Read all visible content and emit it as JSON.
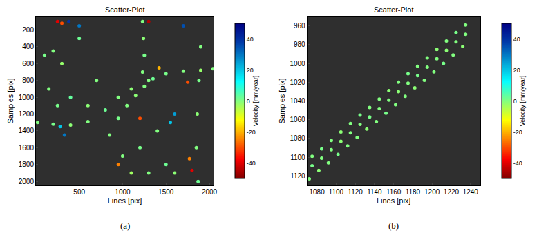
{
  "chart_data": [
    {
      "type": "scatter",
      "title": "Scatter-Plot",
      "caption": "(a)",
      "x_label": "Lines [pix]",
      "y_label": "Samples [pix]",
      "xlim": [
        1,
        2048
      ],
      "ylim": [
        2048,
        40
      ],
      "xticks": [
        500,
        1000,
        1500,
        2000
      ],
      "yticks": [
        200,
        400,
        600,
        800,
        1000,
        1200,
        1400,
        1600,
        1800,
        2000
      ],
      "colorbar": {
        "title": "Velocity [mm/year]",
        "range": [
          -50,
          50
        ],
        "ticks": [
          -40,
          -20,
          0,
          20,
          40
        ]
      },
      "x": [
        20,
        200,
        400,
        600,
        800,
        950,
        1100,
        1300,
        1500,
        1700,
        1900,
        2040,
        850,
        950,
        1050,
        1150,
        1250,
        1350,
        1230,
        1240,
        1250,
        1230,
        1900,
        1880,
        1860,
        1850,
        1870,
        100,
        200,
        300,
        150,
        250,
        400,
        600,
        700,
        500,
        1000,
        1100,
        1200,
        1400,
        1500,
        1600,
        1300,
        250,
        300,
        380,
        500,
        1300,
        1700,
        1420,
        1750,
        330,
        280,
        950,
        1770,
        1800,
        1600,
        1200,
        1550
      ],
      "y": [
        1300,
        1320,
        1330,
        1290,
        1150,
        1000,
        900,
        800,
        720,
        690,
        680,
        660,
        1450,
        1250,
        1100,
        980,
        870,
        780,
        100,
        300,
        500,
        700,
        400,
        800,
        1200,
        1600,
        2000,
        500,
        450,
        600,
        900,
        1100,
        1000,
        1100,
        800,
        300,
        1700,
        1900,
        1600,
        1400,
        1800,
        1900,
        1900,
        100,
        120,
        100,
        150,
        100,
        150,
        650,
        820,
        1450,
        1350,
        1800,
        1730,
        1870,
        1200,
        1250,
        1300
      ],
      "velocity": [
        0,
        1,
        -1,
        0,
        2,
        0,
        -1,
        0,
        1,
        0,
        -2,
        0,
        0,
        1,
        0,
        -1,
        0,
        2,
        0,
        -1,
        1,
        0,
        0,
        1,
        -1,
        0,
        2,
        1,
        0,
        -2,
        0,
        1,
        3,
        -1,
        0,
        2,
        0,
        -3,
        1,
        0,
        2,
        -1,
        0,
        -40,
        -30,
        40,
        30,
        -45,
        35,
        -20,
        -30,
        30,
        20,
        -25,
        -25,
        -40,
        25,
        -30,
        20
      ]
    },
    {
      "type": "scatter",
      "title": "Scatter-Plot",
      "caption": "(b)",
      "x_label": "Lines [pix]",
      "y_label": "Samples [pix]",
      "xlim": [
        1070,
        1250
      ],
      "ylim": [
        1130,
        950
      ],
      "xticks": [
        1080,
        1100,
        1120,
        1140,
        1160,
        1180,
        1200,
        1220,
        1240
      ],
      "yticks": [
        960,
        980,
        1000,
        1020,
        1040,
        1060,
        1080,
        1100,
        1120
      ],
      "colorbar": {
        "title": "Velocity [mm/year]",
        "range": [
          -50,
          50
        ],
        "ticks": [
          -40,
          -20,
          0,
          20,
          40
        ]
      },
      "x": [
        1075,
        1085,
        1095,
        1105,
        1115,
        1125,
        1135,
        1145,
        1155,
        1165,
        1175,
        1185,
        1195,
        1205,
        1215,
        1225,
        1235,
        1075,
        1085,
        1095,
        1105,
        1115,
        1125,
        1135,
        1145,
        1155,
        1165,
        1175,
        1185,
        1195,
        1205,
        1215,
        1225,
        1235,
        1072,
        1082,
        1092,
        1102,
        1112,
        1122,
        1132,
        1142,
        1152,
        1162,
        1172,
        1182,
        1192,
        1202,
        1212,
        1222,
        1232
      ],
      "y": [
        1099,
        1091,
        1082,
        1073,
        1064,
        1055,
        1047,
        1038,
        1029,
        1020,
        1011,
        1003,
        994,
        985,
        976,
        967,
        959,
        1109,
        1101,
        1092,
        1083,
        1074,
        1065,
        1057,
        1048,
        1039,
        1030,
        1021,
        1013,
        1004,
        995,
        986,
        977,
        969,
        1123,
        1114,
        1106,
        1097,
        1088,
        1079,
        1070,
        1062,
        1053,
        1044,
        1035,
        1026,
        1018,
        1009,
        1000,
        991,
        982
      ],
      "velocity": [
        0,
        1,
        0,
        -1,
        0,
        1,
        0,
        0,
        -1,
        0,
        1,
        0,
        0,
        -1,
        0,
        1,
        0,
        1,
        0,
        0,
        -1,
        0,
        0,
        1,
        0,
        0,
        -1,
        0,
        1,
        0,
        0,
        -1,
        0,
        0,
        0,
        -1,
        0,
        1,
        0,
        0,
        -1,
        0,
        1,
        0,
        0,
        -1,
        0,
        0,
        1,
        0,
        -1
      ]
    }
  ]
}
